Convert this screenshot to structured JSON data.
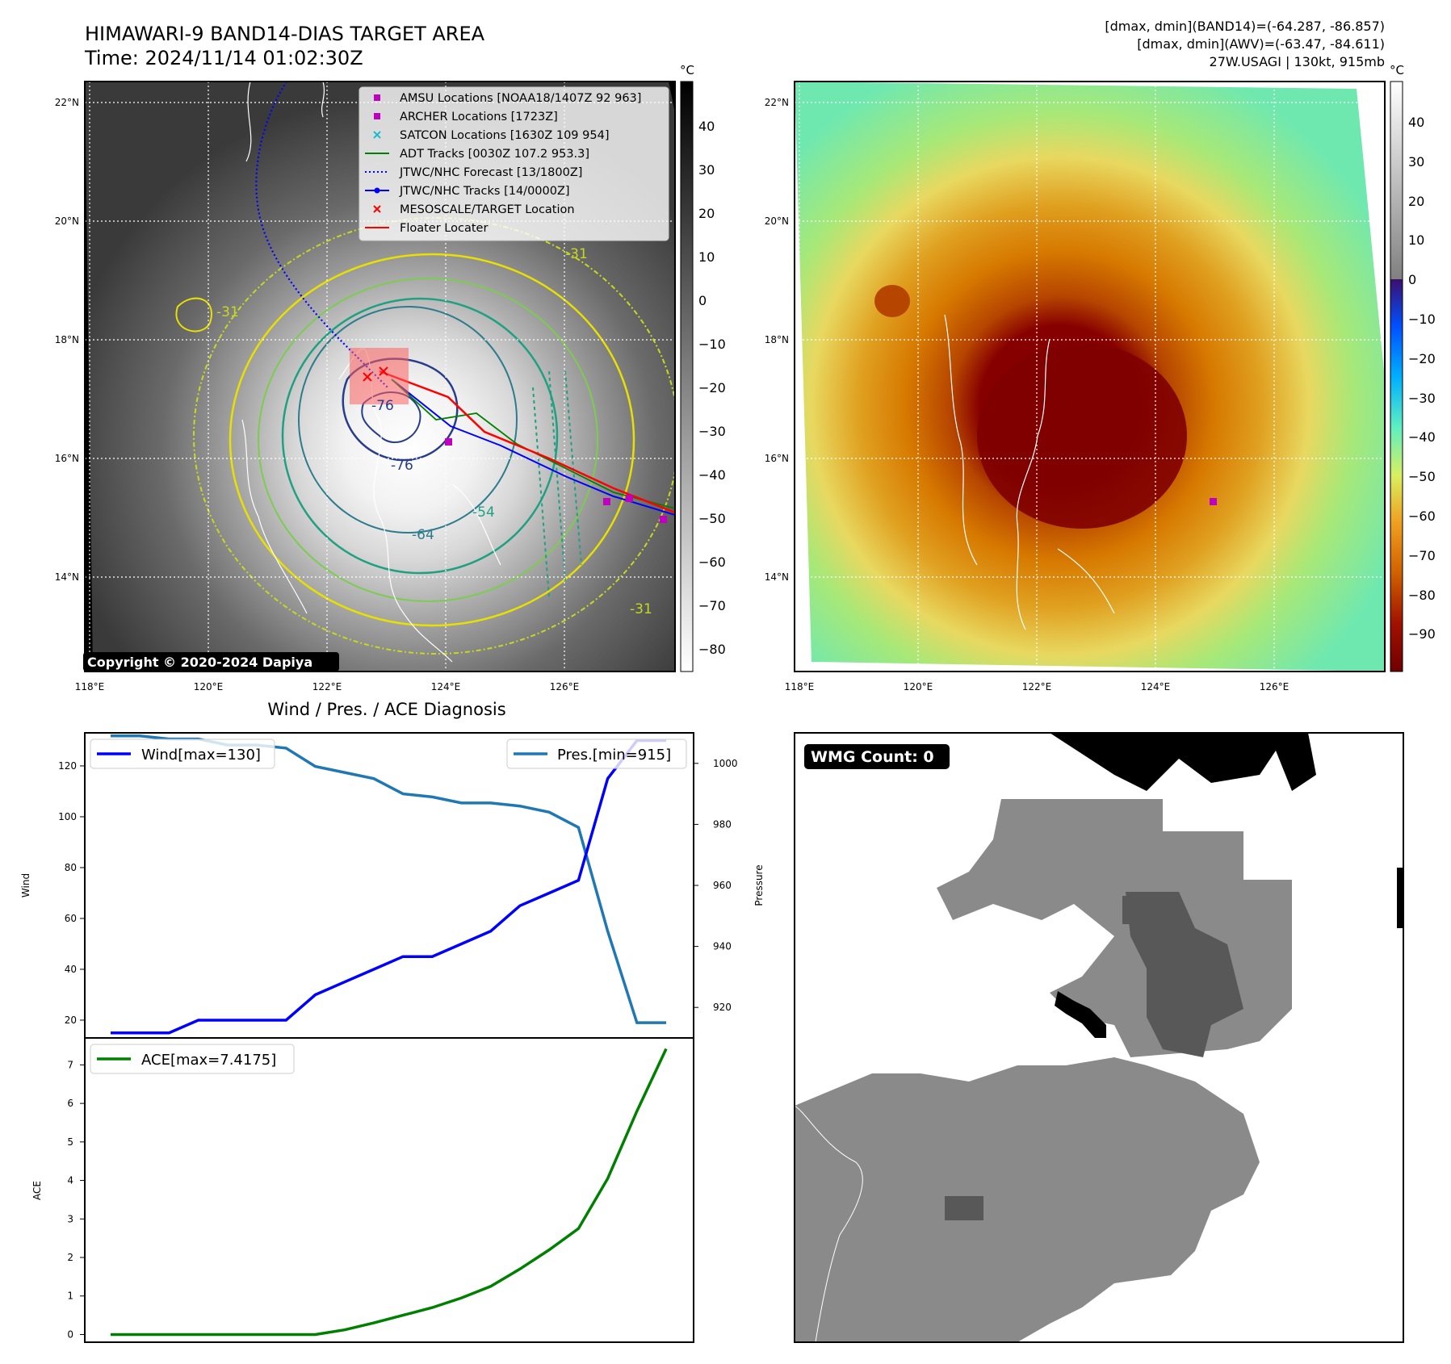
{
  "header": {
    "title_line1": "HIMAWARI-9 BAND14-DIAS TARGET AREA",
    "title_line2": "Time: 2024/11/14 01:02:30Z",
    "info_line1": "[dmax, dmin](BAND14)=(-64.287, -86.857)",
    "info_line2": "[dmax, dmin](AWV)=(-63.47, -84.611)",
    "info_line3": "27W.USAGI | 130kt, 915mb"
  },
  "map_ir": {
    "lon_labels": [
      "118°E",
      "120°E",
      "122°E",
      "124°E",
      "126°E"
    ],
    "lat_labels": [
      "22°N",
      "20°N",
      "18°N",
      "16°N",
      "14°N"
    ],
    "copyright": "Copyright © 2020-2024 Dapiya",
    "contour_labels": [
      "-76",
      "-76",
      "-64",
      "-54",
      "-31",
      "-31",
      "-31"
    ],
    "colorbar_unit": "°C",
    "colorbar_ticks": [
      "40",
      "30",
      "20",
      "10",
      "0",
      "−10",
      "−20",
      "−30",
      "−40",
      "−50",
      "−60",
      "−70",
      "−80"
    ],
    "legend": [
      {
        "label": "AMSU Locations [NOAA18/1407Z 92 963]",
        "marker": "square",
        "color": "#c000c0"
      },
      {
        "label": "ARCHER Locations [1723Z]",
        "marker": "square",
        "color": "#c000c0"
      },
      {
        "label": "SATCON Locations [1630Z 109 954]",
        "marker": "x",
        "color": "#17becf"
      },
      {
        "label": "ADT Tracks [0030Z 107.2 953.3]",
        "marker": "line",
        "color": "#008000"
      },
      {
        "label": "JTWC/NHC Forecast [13/1800Z]",
        "marker": "dotted",
        "color": "#0000ff"
      },
      {
        "label": "JTWC/NHC Tracks [14/0000Z]",
        "marker": "line-dot",
        "color": "#0000ff"
      },
      {
        "label": "MESOSCALE/TARGET Location",
        "marker": "x",
        "color": "#ff0000"
      },
      {
        "label": "Floater Locater",
        "marker": "line",
        "color": "#ff0000"
      }
    ]
  },
  "map_awv": {
    "lon_labels": [
      "118°E",
      "120°E",
      "122°E",
      "124°E",
      "126°E"
    ],
    "lat_labels": [
      "22°N",
      "20°N",
      "18°N",
      "16°N",
      "14°N"
    ],
    "colorbar_unit": "°C",
    "colorbar_ticks": [
      "40",
      "30",
      "20",
      "10",
      "0",
      "−10",
      "−20",
      "−30",
      "−40",
      "−50",
      "−60",
      "−70",
      "−80",
      "−90"
    ]
  },
  "wmg": {
    "badge": "WMG Count: 0"
  },
  "chart_data": [
    {
      "type": "line",
      "title": "Wind / Pres. / ACE Diagnosis",
      "ylabel": "Wind",
      "ylabel_right": "Pressure",
      "ylim": [
        13,
        133
      ],
      "ylim_right": [
        910,
        1010
      ],
      "yticks": [
        20,
        40,
        60,
        80,
        100,
        120
      ],
      "yticks_right": [
        920,
        940,
        960,
        980,
        1000
      ],
      "series": [
        {
          "name": "Wind[max=130]",
          "color": "#0000ff",
          "axis": "left",
          "values": [
            15,
            15,
            15,
            20,
            20,
            20,
            20,
            30,
            35,
            40,
            45,
            45,
            50,
            55,
            65,
            70,
            75,
            115,
            130,
            130
          ]
        },
        {
          "name": "Pres.[min=915]",
          "color": "#1f77b4",
          "axis": "right",
          "values": [
            1009,
            1009,
            1008,
            1008,
            1006,
            1006,
            1005,
            999,
            997,
            995,
            990,
            989,
            987,
            987,
            986,
            984,
            979,
            945,
            915,
            915
          ]
        }
      ]
    },
    {
      "type": "line",
      "ylabel": "ACE",
      "ylim": [
        -0.2,
        7.7
      ],
      "yticks": [
        0,
        1,
        2,
        3,
        4,
        5,
        6,
        7
      ],
      "series": [
        {
          "name": "ACE[max=7.4175]",
          "color": "#008000",
          "values": [
            0,
            0,
            0,
            0,
            0,
            0,
            0,
            0,
            0.12,
            0.3,
            0.5,
            0.7,
            0.95,
            1.25,
            1.7,
            2.2,
            2.75,
            4.05,
            5.8,
            7.4175
          ]
        }
      ]
    }
  ]
}
